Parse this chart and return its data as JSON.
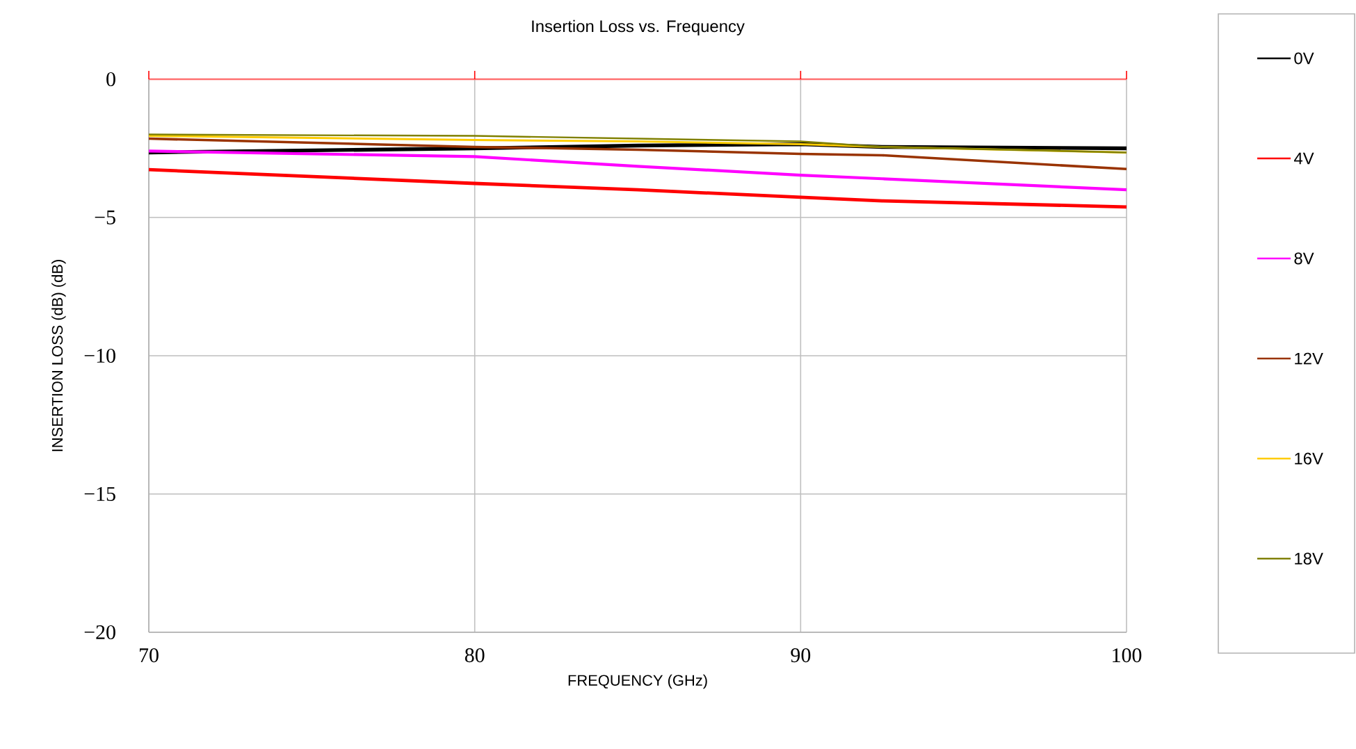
{
  "chart_data": {
    "type": "line",
    "title": "Insertion Loss vs. Frequency",
    "xlabel": "FREQUENCY (GHz)",
    "ylabel": "INSERTION LOSS (dB) (dB)",
    "xlim": [
      70,
      100
    ],
    "xticks": [
      70,
      80,
      90,
      100
    ],
    "ylim": [
      -20,
      0
    ],
    "yticks": [
      {
        "value": -20,
        "label": "−20"
      },
      {
        "value": -15,
        "label": "−15"
      },
      {
        "value": -10,
        "label": "−10"
      },
      {
        "value": -5,
        "label": "−5"
      },
      0
    ],
    "grid": true,
    "legend": "right",
    "marker": "none",
    "line_style": "solid",
    "ref_lines": [
      {
        "axis": "y",
        "value": 0,
        "color": "#ff7070"
      }
    ],
    "x": [
      70,
      80,
      85,
      90,
      92.5,
      100
    ],
    "series": [
      {
        "name": "0V",
        "color": "#000000",
        "values": [
          -2.65,
          -2.5,
          -2.4,
          -2.35,
          -2.45,
          -2.5
        ]
      },
      {
        "name": "4V",
        "color": "#ff0000",
        "values": [
          -3.27,
          -3.77,
          -4.0,
          -4.27,
          -4.4,
          -4.62
        ]
      },
      {
        "name": "8V",
        "color": "#ff00ff",
        "values": [
          -2.6,
          -2.8,
          -3.15,
          -3.47,
          -3.6,
          -4.0
        ]
      },
      {
        "name": "12V",
        "color": "#993300",
        "values": [
          -2.15,
          -2.45,
          -2.55,
          -2.7,
          -2.75,
          -3.25
        ]
      },
      {
        "name": "16V",
        "color": "#ffcc00",
        "values": [
          -2.05,
          -2.2,
          -2.25,
          -2.35,
          -2.45,
          -2.65
        ]
      },
      {
        "name": "18V",
        "color": "#808000",
        "values": [
          -2.0,
          -2.05,
          -2.15,
          -2.25,
          -2.45,
          -2.65
        ]
      }
    ]
  }
}
